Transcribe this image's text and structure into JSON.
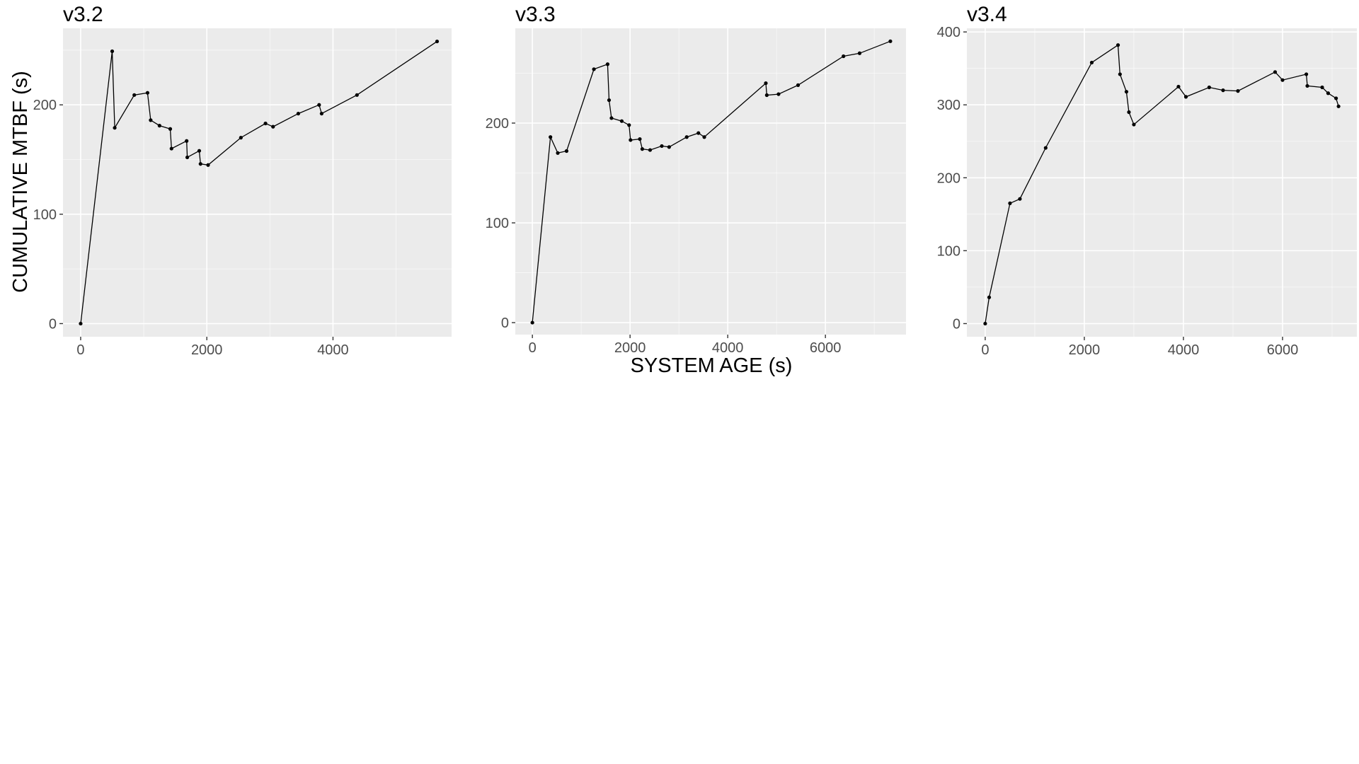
{
  "figure": {
    "xlabel": "SYSTEM AGE (s)",
    "ylabel": "CUMULATIVE MTBF (s)"
  },
  "colors": {
    "panel_background": "#ebebeb",
    "grid_major": "#ffffff",
    "line": "#000000",
    "point": "#000000",
    "tick_text": "#4d4d4d"
  },
  "chart_data": [
    {
      "type": "line",
      "title": "v3.2",
      "xlim": [
        -280,
        5880
      ],
      "ylim": [
        -12,
        270
      ],
      "xticks": [
        0,
        2000,
        4000
      ],
      "yticks": [
        0,
        100,
        200
      ],
      "grid": true,
      "points": [
        [
          0,
          0
        ],
        [
          500,
          249
        ],
        [
          540,
          179
        ],
        [
          850,
          209
        ],
        [
          1060,
          211
        ],
        [
          1110,
          186
        ],
        [
          1250,
          181
        ],
        [
          1420,
          178
        ],
        [
          1440,
          160
        ],
        [
          1680,
          167
        ],
        [
          1690,
          152
        ],
        [
          1880,
          158
        ],
        [
          1900,
          146
        ],
        [
          2020,
          145
        ],
        [
          2540,
          170
        ],
        [
          2930,
          183
        ],
        [
          3050,
          180
        ],
        [
          3450,
          192
        ],
        [
          3780,
          200
        ],
        [
          3820,
          192
        ],
        [
          4380,
          209
        ],
        [
          5650,
          258
        ]
      ]
    },
    {
      "type": "line",
      "title": "v3.3",
      "xlim": [
        -350,
        7650
      ],
      "ylim": [
        -12,
        295
      ],
      "xticks": [
        0,
        2000,
        4000,
        6000
      ],
      "yticks": [
        0,
        100,
        200
      ],
      "grid": true,
      "points": [
        [
          0,
          0
        ],
        [
          370,
          186
        ],
        [
          520,
          170
        ],
        [
          700,
          172
        ],
        [
          1260,
          254
        ],
        [
          1540,
          259
        ],
        [
          1570,
          223
        ],
        [
          1620,
          205
        ],
        [
          1830,
          202
        ],
        [
          1980,
          198
        ],
        [
          2010,
          183
        ],
        [
          2200,
          184
        ],
        [
          2250,
          174
        ],
        [
          2410,
          173
        ],
        [
          2650,
          177
        ],
        [
          2800,
          176
        ],
        [
          3160,
          186
        ],
        [
          3400,
          190
        ],
        [
          3520,
          186
        ],
        [
          4780,
          240
        ],
        [
          4800,
          228
        ],
        [
          5040,
          229
        ],
        [
          5440,
          238
        ],
        [
          6370,
          267
        ],
        [
          6700,
          270
        ],
        [
          7330,
          282
        ]
      ]
    },
    {
      "type": "line",
      "title": "v3.4",
      "xlim": [
        -370,
        7500
      ],
      "ylim": [
        -18,
        405
      ],
      "xticks": [
        0,
        2000,
        4000,
        6000
      ],
      "yticks": [
        0,
        100,
        200,
        300,
        400
      ],
      "grid": true,
      "points": [
        [
          0,
          0
        ],
        [
          80,
          36
        ],
        [
          500,
          165
        ],
        [
          700,
          171
        ],
        [
          1220,
          241
        ],
        [
          2150,
          358
        ],
        [
          2680,
          382
        ],
        [
          2720,
          342
        ],
        [
          2850,
          318
        ],
        [
          2900,
          290
        ],
        [
          3000,
          273
        ],
        [
          3900,
          325
        ],
        [
          4050,
          311
        ],
        [
          4520,
          324
        ],
        [
          4800,
          320
        ],
        [
          5100,
          319
        ],
        [
          5850,
          345
        ],
        [
          6000,
          334
        ],
        [
          6480,
          342
        ],
        [
          6500,
          326
        ],
        [
          6800,
          324
        ],
        [
          6920,
          316
        ],
        [
          7080,
          309
        ],
        [
          7130,
          298
        ]
      ]
    }
  ]
}
